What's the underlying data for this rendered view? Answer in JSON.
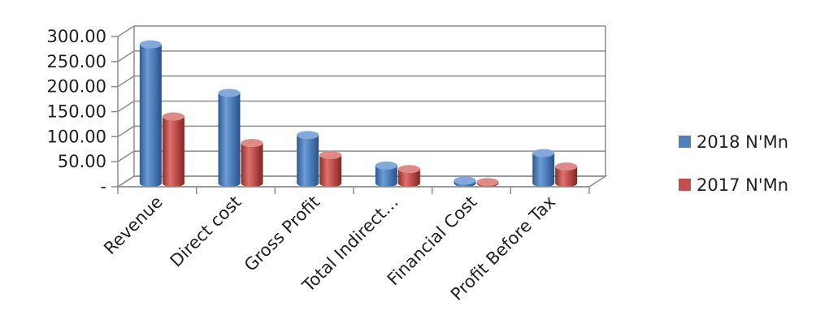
{
  "chart_data": {
    "type": "bar",
    "categories": [
      "Revenue",
      "Direct cost",
      "Gross Profit",
      "Total Indirect…",
      "Financial Cost",
      "Profit Before Tax"
    ],
    "series": [
      {
        "name": "2018 N'Mn",
        "color": "#4F81BD",
        "values": [
          277,
          180,
          96,
          35,
          5,
          60
        ]
      },
      {
        "name": "2017 N'Mn",
        "color": "#C0504D",
        "values": [
          133,
          80,
          56,
          28,
          2,
          33
        ]
      }
    ],
    "y_ticks": [
      {
        "value": 0,
        "label": "-"
      },
      {
        "value": 50,
        "label": "50.00"
      },
      {
        "value": 100,
        "label": "100.00"
      },
      {
        "value": 150,
        "label": "150.00"
      },
      {
        "value": 200,
        "label": "200.00"
      },
      {
        "value": 250,
        "label": "250.00"
      },
      {
        "value": 300,
        "label": "300.00"
      }
    ],
    "ylim": [
      0,
      300
    ],
    "grid": true,
    "legend_position": "right",
    "style": "3d-cylinder"
  }
}
